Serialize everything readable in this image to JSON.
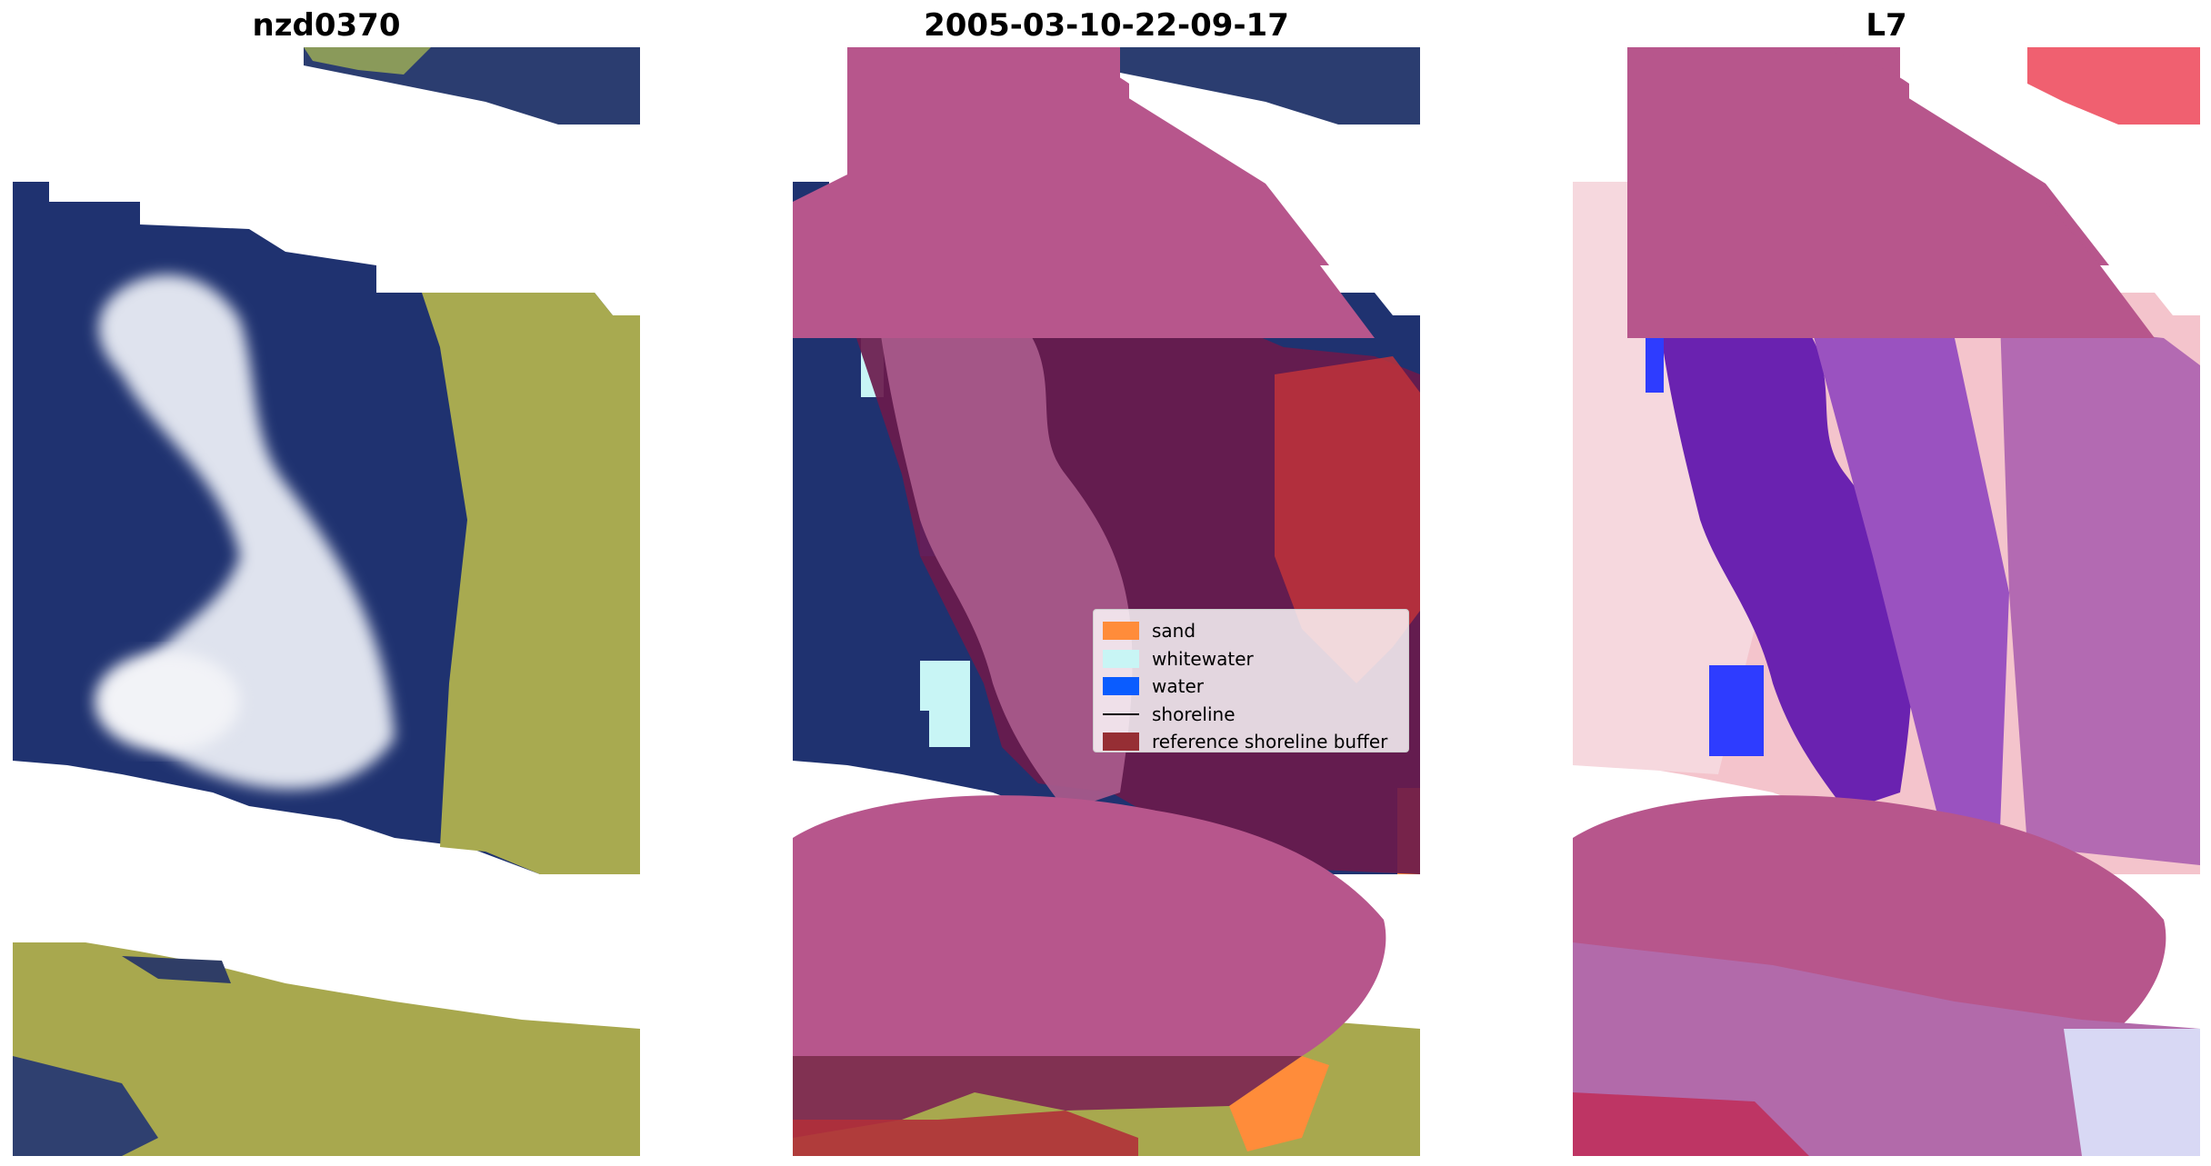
{
  "titles": {
    "left": "nzd0370",
    "center": "2005-03-10-22-09-17",
    "right": "L7"
  },
  "legend": {
    "items": [
      {
        "label": "sand",
        "color": "#ff8c3a",
        "kind": "patch"
      },
      {
        "label": "whitewater",
        "color": "#c8f5f5",
        "kind": "patch"
      },
      {
        "label": "water",
        "color": "#0a5cff",
        "kind": "patch"
      },
      {
        "label": "shoreline",
        "color": "#000000",
        "kind": "line"
      },
      {
        "label": "reference shoreline buffer",
        "color": "#962e34",
        "kind": "patch"
      }
    ]
  },
  "colors": {
    "ocean": "#1e3170",
    "land": "#b8b84a",
    "surf": "#e8ecf4",
    "buffer_overlay": "#b7568c",
    "buffer_dark": "#6a1a4c",
    "ndwi_water": "#6a22b0",
    "ndwi_land": "#f4b8c0"
  }
}
